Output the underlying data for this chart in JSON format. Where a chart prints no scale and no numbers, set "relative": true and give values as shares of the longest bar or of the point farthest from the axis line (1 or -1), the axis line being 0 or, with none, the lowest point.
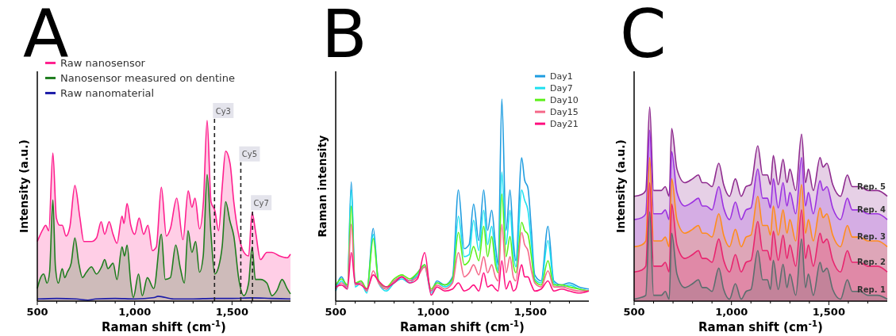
{
  "chart_data": [
    {
      "type": "area",
      "title": "A",
      "xlabel": "Raman shift (cm$^{-1}$)",
      "ylabel": "Intensity (a.u.)",
      "relative": true,
      "legend": "top left",
      "xlim": [
        500,
        1800
      ],
      "xticks": [
        {
          "value": 500,
          "label": "500"
        },
        {
          "value": 600,
          "label": null
        },
        {
          "value": 700,
          "label": null
        },
        {
          "value": 800,
          "label": null
        },
        {
          "value": 900,
          "label": null
        },
        {
          "value": 1000,
          "label": "1,000"
        },
        {
          "value": 1100,
          "label": null
        },
        {
          "value": 1200,
          "label": null
        },
        {
          "value": 1300,
          "label": null
        },
        {
          "value": 1400,
          "label": null
        },
        {
          "value": 1500,
          "label": "1,500"
        },
        {
          "value": 1600,
          "label": null
        },
        {
          "value": 1700,
          "label": null
        }
      ],
      "series": [
        {
          "name": "Raw nanosensor",
          "color": "#ff1f8e",
          "x": [
            500,
            530,
            543,
            559,
            580,
            598,
            615,
            628,
            648,
            667,
            693,
            719,
            739,
            758,
            778,
            804,
            828,
            846,
            869,
            889,
            909,
            935,
            945,
            961,
            980,
            1000,
            1023,
            1046,
            1068,
            1091,
            1111,
            1137,
            1163,
            1183,
            1216,
            1248,
            1275,
            1294,
            1310,
            1333,
            1353,
            1372,
            1392,
            1412,
            1431,
            1450,
            1467,
            1490,
            1509,
            1535,
            1561,
            1585,
            1603,
            1620,
            1646,
            1679,
            1705,
            1744,
            1783,
            1800
          ],
          "values": [
            0.33,
            0.4,
            0.42,
            0.39,
            0.82,
            0.46,
            0.42,
            0.42,
            0.36,
            0.41,
            0.64,
            0.46,
            0.33,
            0.33,
            0.33,
            0.35,
            0.44,
            0.37,
            0.44,
            0.37,
            0.32,
            0.47,
            0.43,
            0.54,
            0.42,
            0.37,
            0.46,
            0.37,
            0.42,
            0.28,
            0.3,
            0.63,
            0.36,
            0.4,
            0.57,
            0.34,
            0.61,
            0.52,
            0.57,
            0.4,
            0.55,
            1.0,
            0.55,
            0.5,
            0.39,
            0.64,
            0.83,
            0.76,
            0.55,
            0.36,
            0.27,
            0.25,
            0.49,
            0.39,
            0.23,
            0.27,
            0.27,
            0.25,
            0.24,
            0.26
          ]
        },
        {
          "name": "Nanosensor measured on dentine",
          "color": "#1e7d1e",
          "x": [
            500,
            517,
            533,
            550,
            563,
            580,
            593,
            608,
            628,
            641,
            654,
            674,
            693,
            713,
            732,
            752,
            778,
            804,
            830,
            846,
            863,
            889,
            909,
            935,
            948,
            961,
            980,
            993,
            1020,
            1039,
            1065,
            1098,
            1137,
            1157,
            1183,
            1211,
            1235,
            1255,
            1274,
            1294,
            1313,
            1333,
            1352,
            1372,
            1392,
            1411,
            1431,
            1450,
            1467,
            1490,
            1509,
            1535,
            1561,
            1585,
            1603,
            1620,
            1646,
            1679,
            1705,
            1731,
            1757,
            1783,
            1800
          ],
          "values": [
            0.07,
            0.13,
            0.15,
            0.1,
            0.16,
            0.56,
            0.19,
            0.1,
            0.18,
            0.13,
            0.16,
            0.21,
            0.35,
            0.21,
            0.13,
            0.16,
            0.19,
            0.15,
            0.19,
            0.23,
            0.18,
            0.21,
            0.12,
            0.3,
            0.25,
            0.31,
            0.1,
            0.02,
            0.15,
            0.03,
            0.13,
            0.07,
            0.37,
            0.12,
            0.13,
            0.31,
            0.18,
            0.1,
            0.39,
            0.27,
            0.33,
            0.16,
            0.25,
            0.7,
            0.37,
            0.15,
            0.19,
            0.31,
            0.55,
            0.44,
            0.36,
            0.12,
            0.03,
            0.1,
            0.3,
            0.12,
            0.12,
            0.1,
            0.03,
            0.06,
            0.12,
            0.07,
            0.04
          ]
        },
        {
          "name": "Raw nanomaterial",
          "type": "line",
          "color": "#1c1ca8",
          "x": [
            500,
            600,
            700,
            760,
            800,
            900,
            1000,
            1100,
            1120,
            1200,
            1300,
            1400,
            1500,
            1600,
            1700,
            1800
          ],
          "values": [
            0.012,
            0.015,
            0.012,
            0.005,
            0.012,
            0.015,
            0.012,
            0.02,
            0.027,
            0.012,
            0.012,
            0.015,
            0.015,
            0.018,
            0.015,
            0.012
          ]
        }
      ],
      "ref_lines": [
        {
          "axis": "x",
          "value": 1410,
          "label": "Cy3",
          "color": "#222222",
          "line_style": "dashed"
        },
        {
          "axis": "x",
          "value": 1545,
          "label": "Cy5",
          "color": "#222222",
          "line_style": "dashed"
        },
        {
          "axis": "x",
          "value": 1605,
          "label": "Cy7",
          "color": "#222222",
          "line_style": "dashed"
        }
      ]
    },
    {
      "type": "line",
      "title": "B",
      "xlabel": "Raman shift (cm$^{-1}$)",
      "ylabel": "Raman intensity",
      "relative": true,
      "legend": "top right",
      "xlim": [
        500,
        1800
      ],
      "xticks": [
        {
          "value": 500,
          "label": "500"
        },
        {
          "value": 600,
          "label": null
        },
        {
          "value": 700,
          "label": null
        },
        {
          "value": 800,
          "label": null
        },
        {
          "value": 900,
          "label": null
        },
        {
          "value": 1000,
          "label": "1,000"
        },
        {
          "value": 1100,
          "label": null
        },
        {
          "value": 1200,
          "label": null
        },
        {
          "value": 1300,
          "label": null
        },
        {
          "value": 1400,
          "label": null
        },
        {
          "value": 1500,
          "label": "1,500"
        },
        {
          "value": 1600,
          "label": null
        },
        {
          "value": 1700,
          "label": null
        }
      ],
      "x": [
        500,
        530,
        560,
        580,
        600,
        630,
        660,
        693,
        720,
        760,
        800,
        840,
        880,
        920,
        957,
        990,
        1020,
        1060,
        1100,
        1130,
        1160,
        1185,
        1208,
        1235,
        1260,
        1280,
        1301,
        1320,
        1334,
        1353,
        1375,
        1395,
        1412,
        1425,
        1455,
        1470,
        1487,
        1505,
        1522,
        1555,
        1590,
        1620,
        1660,
        1700,
        1750,
        1800
      ],
      "series": [
        {
          "name": "Day1",
          "color": "#1f9de0",
          "values": [
            0.06,
            0.12,
            0.07,
            0.59,
            0.08,
            0.1,
            0.05,
            0.36,
            0.1,
            0.06,
            0.1,
            0.12,
            0.1,
            0.14,
            0.18,
            0.05,
            0.1,
            0.08,
            0.12,
            0.55,
            0.26,
            0.28,
            0.48,
            0.3,
            0.55,
            0.35,
            0.45,
            0.28,
            0.18,
            1.0,
            0.35,
            0.55,
            0.3,
            0.2,
            0.71,
            0.6,
            0.56,
            0.35,
            0.13,
            0.1,
            0.37,
            0.1,
            0.08,
            0.09,
            0.07,
            0.06
          ]
        },
        {
          "name": "Day7",
          "color": "#1ee0f0",
          "values": [
            0.05,
            0.1,
            0.06,
            0.55,
            0.07,
            0.09,
            0.04,
            0.33,
            0.09,
            0.05,
            0.09,
            0.11,
            0.09,
            0.13,
            0.17,
            0.04,
            0.09,
            0.07,
            0.1,
            0.42,
            0.22,
            0.23,
            0.4,
            0.25,
            0.45,
            0.28,
            0.37,
            0.22,
            0.15,
            0.64,
            0.28,
            0.45,
            0.24,
            0.17,
            0.55,
            0.5,
            0.45,
            0.28,
            0.11,
            0.09,
            0.3,
            0.09,
            0.07,
            0.08,
            0.06,
            0.05
          ]
        },
        {
          "name": "Day10",
          "color": "#5cf01a",
          "values": [
            0.08,
            0.11,
            0.08,
            0.47,
            0.09,
            0.1,
            0.06,
            0.31,
            0.1,
            0.07,
            0.11,
            0.13,
            0.11,
            0.14,
            0.18,
            0.06,
            0.09,
            0.08,
            0.11,
            0.34,
            0.18,
            0.2,
            0.27,
            0.2,
            0.37,
            0.22,
            0.32,
            0.18,
            0.14,
            0.53,
            0.22,
            0.32,
            0.18,
            0.14,
            0.39,
            0.35,
            0.33,
            0.22,
            0.1,
            0.08,
            0.2,
            0.08,
            0.08,
            0.07,
            0.06,
            0.05
          ]
        },
        {
          "name": "Day15",
          "color": "#f56a8a",
          "values": [
            0.06,
            0.09,
            0.07,
            0.38,
            0.08,
            0.09,
            0.05,
            0.15,
            0.09,
            0.06,
            0.1,
            0.12,
            0.1,
            0.12,
            0.17,
            0.05,
            0.08,
            0.06,
            0.09,
            0.24,
            0.12,
            0.14,
            0.18,
            0.13,
            0.22,
            0.14,
            0.18,
            0.12,
            0.1,
            0.38,
            0.14,
            0.22,
            0.12,
            0.1,
            0.34,
            0.28,
            0.25,
            0.15,
            0.09,
            0.07,
            0.15,
            0.07,
            0.07,
            0.06,
            0.05,
            0.05
          ]
        },
        {
          "name": "Day21",
          "color": "#ff0f7f",
          "values": [
            0.07,
            0.08,
            0.06,
            0.24,
            0.09,
            0.08,
            0.06,
            0.13,
            0.1,
            0.07,
            0.09,
            0.12,
            0.09,
            0.11,
            0.24,
            0.03,
            0.07,
            0.05,
            0.06,
            0.09,
            0.05,
            0.06,
            0.08,
            0.05,
            0.14,
            0.07,
            0.08,
            0.06,
            0.05,
            0.2,
            0.06,
            0.1,
            0.05,
            0.06,
            0.18,
            0.12,
            0.12,
            0.08,
            0.05,
            0.06,
            0.1,
            0.05,
            0.06,
            0.05,
            0.04,
            0.05
          ]
        }
      ]
    },
    {
      "type": "area",
      "title": "C",
      "xlabel": "Raman shift (cm$^{-1}$)",
      "ylabel": "Intensity (a.u.)",
      "relative": true,
      "xlim": [
        500,
        1800
      ],
      "xticks": [
        {
          "value": 500,
          "label": "500"
        },
        {
          "value": 600,
          "label": null
        },
        {
          "value": 700,
          "label": null
        },
        {
          "value": 800,
          "label": null
        },
        {
          "value": 900,
          "label": null
        },
        {
          "value": 1000,
          "label": "1,000"
        },
        {
          "value": 1100,
          "label": null
        },
        {
          "value": 1200,
          "label": null
        },
        {
          "value": 1300,
          "label": null
        },
        {
          "value": 1400,
          "label": null
        },
        {
          "value": 1500,
          "label": "1,500"
        },
        {
          "value": 1600,
          "label": null
        },
        {
          "value": 1700,
          "label": null
        }
      ],
      "x": [
        500,
        540,
        560,
        580,
        600,
        640,
        660,
        680,
        693,
        720,
        760,
        800,
        830,
        850,
        870,
        900,
        935,
        960,
        990,
        1020,
        1050,
        1075,
        1100,
        1135,
        1160,
        1185,
        1200,
        1215,
        1240,
        1265,
        1285,
        1300,
        1330,
        1360,
        1380,
        1395,
        1420,
        1455,
        1470,
        1490,
        1520,
        1560,
        1595,
        1620,
        1660,
        1700,
        1750,
        1800
      ],
      "series": [
        {
          "name": "Rep. 5",
          "color": "#8e2a8e",
          "values": [
            0.54,
            0.55,
            0.57,
            1.0,
            0.57,
            0.57,
            0.59,
            0.54,
            0.89,
            0.68,
            0.61,
            0.63,
            0.65,
            0.61,
            0.61,
            0.59,
            0.71,
            0.6,
            0.54,
            0.63,
            0.54,
            0.59,
            0.6,
            0.8,
            0.65,
            0.65,
            0.6,
            0.75,
            0.6,
            0.73,
            0.61,
            0.68,
            0.57,
            0.86,
            0.61,
            0.68,
            0.57,
            0.74,
            0.69,
            0.71,
            0.6,
            0.54,
            0.65,
            0.59,
            0.59,
            0.57,
            0.57,
            0.54
          ]
        },
        {
          "name": "Rep. 4",
          "color": "#9b30e0",
          "values": [
            0.42,
            0.43,
            0.45,
            0.88,
            0.45,
            0.45,
            0.47,
            0.42,
            0.77,
            0.56,
            0.49,
            0.51,
            0.53,
            0.49,
            0.49,
            0.47,
            0.59,
            0.48,
            0.42,
            0.51,
            0.42,
            0.47,
            0.48,
            0.68,
            0.53,
            0.53,
            0.48,
            0.63,
            0.48,
            0.61,
            0.49,
            0.56,
            0.45,
            0.74,
            0.49,
            0.56,
            0.45,
            0.62,
            0.57,
            0.59,
            0.48,
            0.42,
            0.53,
            0.47,
            0.47,
            0.45,
            0.45,
            0.42
          ]
        },
        {
          "name": "Rep. 3",
          "color": "#ff8c1a",
          "values": [
            0.28,
            0.29,
            0.31,
            0.74,
            0.31,
            0.31,
            0.33,
            0.28,
            0.63,
            0.42,
            0.35,
            0.37,
            0.39,
            0.35,
            0.35,
            0.33,
            0.45,
            0.34,
            0.28,
            0.37,
            0.28,
            0.33,
            0.34,
            0.54,
            0.39,
            0.39,
            0.34,
            0.49,
            0.34,
            0.47,
            0.35,
            0.42,
            0.31,
            0.6,
            0.35,
            0.42,
            0.31,
            0.48,
            0.43,
            0.45,
            0.34,
            0.28,
            0.39,
            0.33,
            0.33,
            0.31,
            0.31,
            0.28
          ]
        },
        {
          "name": "Rep. 2",
          "color": "#e8246e",
          "values": [
            0.15,
            0.16,
            0.18,
            0.61,
            0.18,
            0.18,
            0.2,
            0.15,
            0.5,
            0.29,
            0.22,
            0.24,
            0.26,
            0.22,
            0.22,
            0.2,
            0.32,
            0.21,
            0.15,
            0.24,
            0.15,
            0.2,
            0.21,
            0.41,
            0.26,
            0.26,
            0.21,
            0.36,
            0.21,
            0.34,
            0.22,
            0.29,
            0.18,
            0.47,
            0.22,
            0.29,
            0.18,
            0.35,
            0.3,
            0.32,
            0.21,
            0.15,
            0.26,
            0.2,
            0.2,
            0.18,
            0.18,
            0.15
          ]
        },
        {
          "name": "Rep. 1",
          "color": "#5a6e6e",
          "values": [
            0.01,
            0.02,
            0.03,
            0.46,
            0.03,
            0.03,
            0.05,
            0.01,
            0.35,
            0.14,
            0.07,
            0.09,
            0.11,
            0.07,
            0.07,
            0.05,
            0.17,
            0.06,
            0.01,
            0.09,
            0.01,
            0.05,
            0.06,
            0.26,
            0.11,
            0.11,
            0.06,
            0.21,
            0.06,
            0.19,
            0.07,
            0.14,
            0.03,
            0.32,
            0.07,
            0.14,
            0.03,
            0.2,
            0.15,
            0.17,
            0.06,
            0.01,
            0.11,
            0.05,
            0.05,
            0.03,
            0.03,
            0.01
          ]
        }
      ]
    }
  ]
}
